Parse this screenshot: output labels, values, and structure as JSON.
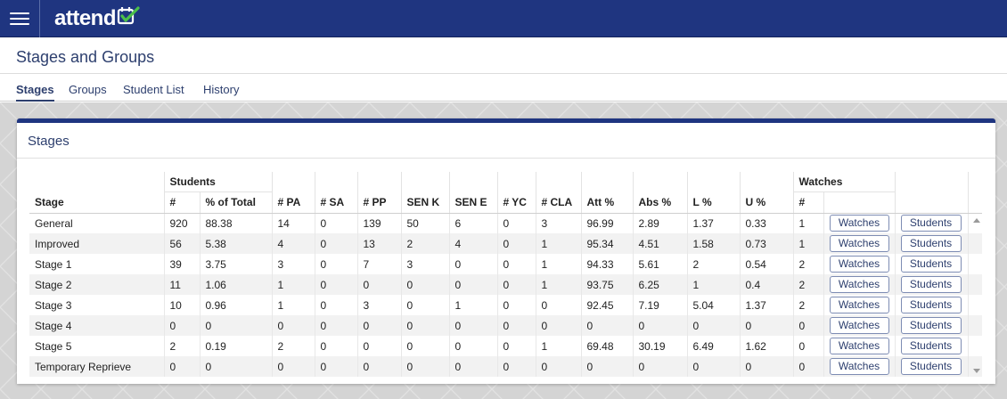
{
  "app": {
    "logo_text": "attend",
    "logo_icon": "calendar-check-icon",
    "accent": "#1f3580",
    "check_color": "#4cc04a"
  },
  "page": {
    "title": "Stages and Groups"
  },
  "tabs": [
    {
      "label": "Stages",
      "active": true
    },
    {
      "label": "Groups",
      "active": false
    },
    {
      "label": "Student List",
      "active": false
    },
    {
      "label": "History",
      "active": false
    }
  ],
  "card": {
    "title": "Stages"
  },
  "table": {
    "group_headers": {
      "students": "Students",
      "watches": "Watches"
    },
    "headers": [
      "Stage",
      "#",
      "% of Total",
      "# PA",
      "# SA",
      "# PP",
      "SEN K",
      "SEN E",
      "# YC",
      "# CLA",
      "Att %",
      "Abs %",
      "L %",
      "U %",
      "#"
    ],
    "watches_button": "Watches",
    "students_button": "Students",
    "rows": [
      [
        "General",
        "920",
        "88.38",
        "14",
        "0",
        "139",
        "50",
        "6",
        "0",
        "3",
        "96.99",
        "2.89",
        "1.37",
        "0.33",
        "1"
      ],
      [
        "Improved",
        "56",
        "5.38",
        "4",
        "0",
        "13",
        "2",
        "4",
        "0",
        "1",
        "95.34",
        "4.51",
        "1.58",
        "0.73",
        "1"
      ],
      [
        "Stage 1",
        "39",
        "3.75",
        "3",
        "0",
        "7",
        "3",
        "0",
        "0",
        "1",
        "94.33",
        "5.61",
        "2",
        "0.54",
        "2"
      ],
      [
        "Stage 2",
        "11",
        "1.06",
        "1",
        "0",
        "0",
        "0",
        "0",
        "0",
        "1",
        "93.75",
        "6.25",
        "1",
        "0.4",
        "2"
      ],
      [
        "Stage 3",
        "10",
        "0.96",
        "1",
        "0",
        "3",
        "0",
        "1",
        "0",
        "0",
        "92.45",
        "7.19",
        "5.04",
        "1.37",
        "2"
      ],
      [
        "Stage 4",
        "0",
        "0",
        "0",
        "0",
        "0",
        "0",
        "0",
        "0",
        "0",
        "0",
        "0",
        "0",
        "0",
        "0"
      ],
      [
        "Stage 5",
        "2",
        "0.19",
        "2",
        "0",
        "0",
        "0",
        "0",
        "0",
        "1",
        "69.48",
        "30.19",
        "6.49",
        "1.62",
        "0"
      ],
      [
        "Temporary Reprieve",
        "0",
        "0",
        "0",
        "0",
        "0",
        "0",
        "0",
        "0",
        "0",
        "0",
        "0",
        "0",
        "0",
        "0"
      ]
    ]
  }
}
